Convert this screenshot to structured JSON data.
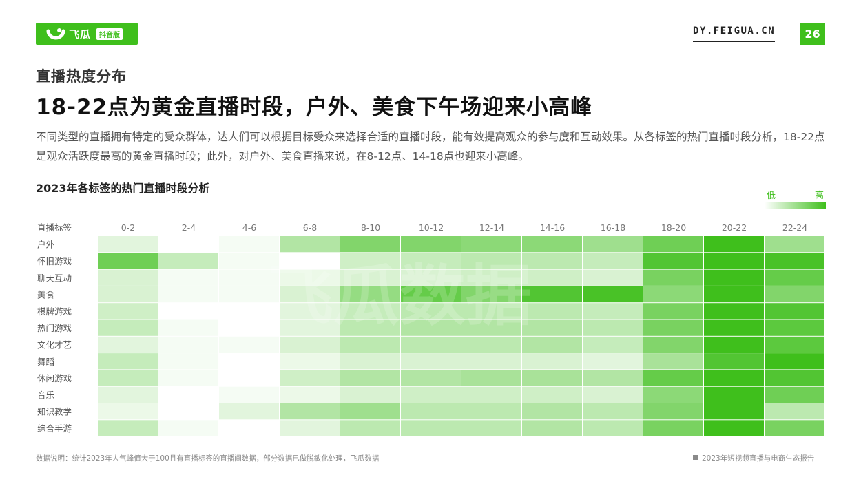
{
  "header": {
    "brand": "飞瓜",
    "badge": "抖音版",
    "site": "DY.FEIGUA.CN",
    "page_number": "26"
  },
  "section_title": "直播热度分布",
  "headline": "18-22点为黄金直播时段，户外、美食下午场迎来小高峰",
  "description": "不同类型的直播拥有特定的受众群体，达人们可以根据目标受众来选择合适的直播时段，能有效提高观众的参与度和互动效果。从各标签的热门直播时段分析，18-22点是观众活跃度最高的黄金直播时段；此外，对户外、美食直播来说，在8-12点、14-18点也迎来小高峰。",
  "chart_title": "2023年各标签的热门直播时段分析",
  "legend": {
    "low": "低",
    "high": "高",
    "color_low": "#ffffff",
    "color_high": "#3fbf1c"
  },
  "chart_data": {
    "type": "heatmap",
    "title": "2023年各标签的热门直播时段分析",
    "corner_label": "直播标签",
    "x": [
      "0-2",
      "2-4",
      "4-6",
      "6-8",
      "8-10",
      "10-12",
      "12-14",
      "14-16",
      "16-18",
      "18-20",
      "20-22",
      "22-24"
    ],
    "y": [
      "户外",
      "怀旧游戏",
      "聊天互动",
      "美食",
      "棋牌游戏",
      "热门游戏",
      "文化才艺",
      "舞蹈",
      "休闲游戏",
      "音乐",
      "知识教学",
      "综合手游"
    ],
    "values": [
      [
        0.15,
        0.0,
        0.05,
        0.4,
        0.65,
        0.65,
        0.6,
        0.6,
        0.5,
        0.75,
        1.0,
        0.5
      ],
      [
        0.75,
        0.3,
        0.05,
        0.0,
        0.25,
        0.3,
        0.35,
        0.35,
        0.3,
        0.9,
        1.0,
        0.95
      ],
      [
        0.2,
        0.05,
        0.05,
        0.1,
        0.2,
        0.2,
        0.25,
        0.25,
        0.2,
        0.7,
        1.0,
        0.8
      ],
      [
        0.2,
        0.05,
        0.05,
        0.2,
        0.55,
        0.8,
        0.65,
        0.9,
        0.95,
        0.6,
        1.0,
        0.65
      ],
      [
        0.25,
        0.0,
        0.0,
        0.15,
        0.3,
        0.35,
        0.35,
        0.35,
        0.3,
        0.7,
        1.0,
        0.9
      ],
      [
        0.3,
        0.05,
        0.0,
        0.15,
        0.35,
        0.4,
        0.4,
        0.4,
        0.35,
        0.7,
        1.0,
        0.85
      ],
      [
        0.15,
        0.05,
        0.05,
        0.2,
        0.35,
        0.35,
        0.35,
        0.4,
        0.3,
        0.65,
        1.0,
        0.85
      ],
      [
        0.3,
        0.05,
        0.0,
        0.1,
        0.2,
        0.2,
        0.2,
        0.2,
        0.15,
        0.45,
        0.9,
        1.0
      ],
      [
        0.3,
        0.05,
        0.0,
        0.25,
        0.4,
        0.4,
        0.45,
        0.45,
        0.4,
        0.8,
        1.0,
        0.9
      ],
      [
        0.15,
        0.0,
        0.05,
        0.1,
        0.2,
        0.25,
        0.25,
        0.25,
        0.2,
        0.6,
        1.0,
        0.75
      ],
      [
        0.1,
        0.0,
        0.15,
        0.4,
        0.5,
        0.35,
        0.35,
        0.4,
        0.35,
        0.65,
        1.0,
        0.35
      ],
      [
        0.3,
        0.05,
        0.0,
        0.15,
        0.35,
        0.35,
        0.35,
        0.4,
        0.35,
        0.7,
        1.0,
        0.7
      ]
    ],
    "scale": "0 = 低, 1 = 高 (relative heat)",
    "color_low": "#ffffff",
    "color_high": "#3fbf1c",
    "watermark": "飞瓜数据"
  },
  "footer": {
    "note": "数据说明：统计2023年人气峰值大于100且有直播标签的直播间数据，部分数据已做脱敏化处理，飞瓜数据",
    "report_title": "2023年短视频直播与电商生态报告"
  }
}
